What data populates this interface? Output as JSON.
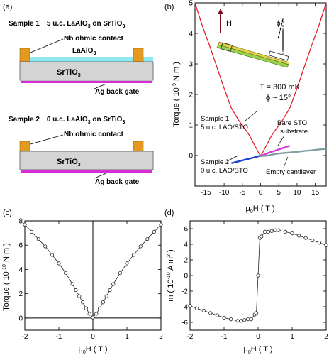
{
  "figure": {
    "panel_labels": [
      "(a)",
      "(b)",
      "(c)",
      "(d)"
    ],
    "panel_a": {
      "sample1": {
        "title_prefix": "Sample 1",
        "title_thickness": "5 u.c. LaAlO",
        "title_sub1": "3",
        "title_on": " on SrTiO",
        "title_sub2": "3",
        "contact_label": "Nb ohmic contact",
        "layer_label": "LaAlO",
        "layer_sub": "3",
        "substrate_label": "SrTiO",
        "substrate_sub": "3",
        "gate_label": "Ag back gate"
      },
      "sample2": {
        "title_prefix": "Sample 2",
        "title_thickness": "0 u.c. LaAlO",
        "title_sub1": "3",
        "title_on": " on SrTiO",
        "title_sub2": "3",
        "contact_label": "Nb ohmic contact",
        "substrate_label": "SrTiO",
        "substrate_sub": "3",
        "gate_label": "Ag back gate"
      },
      "colors": {
        "contact": "#e39a1f",
        "lao": "#8fe9ee",
        "sto": "#d4d4d4",
        "gate": "#d62bd6"
      }
    }
  },
  "chart_data": [
    {
      "panel": "(b)",
      "type": "line",
      "xlabel": "μ0H ( T )",
      "ylabel": "Torque  ( 10-9 N m )",
      "xlim": [
        -18,
        18
      ],
      "ylim": [
        -1,
        5
      ],
      "xticks": [
        -15,
        -10,
        -5,
        0,
        5,
        10,
        15
      ],
      "yticks": [
        0,
        1,
        2,
        3,
        4,
        5
      ],
      "annotations": {
        "temperature": "T = 300 mK",
        "angle": "ϕ ~ 15°",
        "field_arrow": "H",
        "phi_symbol": "ϕ",
        "s1_line1": "Sample 1",
        "s1_line2": "5 u.c. LAO/STO",
        "s2_line1": "Sample 2",
        "s2_line2": "0 u.c.  LAO/STO",
        "bare_line1": "Bare STO",
        "bare_line2": "substrate",
        "empty": "Empty cantilever"
      },
      "series": [
        {
          "color": "#e8202a",
          "x": [
            -18,
            -16,
            -14,
            -12,
            -10,
            -8,
            -6,
            -4,
            -3,
            -2,
            -1,
            -0.5,
            0,
            0.5,
            1,
            2,
            3,
            4,
            6,
            8,
            10,
            12,
            14,
            16,
            18
          ],
          "y": [
            5.0,
            4.25,
            3.6,
            2.9,
            2.2,
            1.55,
            1.15,
            0.82,
            0.65,
            0.42,
            0.2,
            0.08,
            0.0,
            0.08,
            0.2,
            0.42,
            0.65,
            0.82,
            1.15,
            1.55,
            2.2,
            2.9,
            3.6,
            4.25,
            5.0
          ]
        },
        {
          "color": "#1f3fd0",
          "x": [
            -8,
            -7,
            -6,
            -5,
            -4,
            -3,
            -2,
            -1,
            0
          ],
          "y": [
            -0.25,
            -0.22,
            -0.19,
            -0.16,
            -0.13,
            -0.1,
            -0.07,
            -0.04,
            0.0
          ]
        },
        {
          "color": "#d63cd6",
          "x": [
            0,
            1,
            2,
            3,
            4,
            5,
            6,
            7,
            8
          ],
          "y": [
            0.0,
            0.03,
            0.08,
            0.12,
            0.16,
            0.2,
            0.24,
            0.28,
            0.32
          ]
        },
        {
          "color": "#7f9fa4",
          "x": [
            0,
            2,
            4,
            6,
            8,
            10,
            12,
            14,
            16,
            18
          ],
          "y": [
            -0.02,
            0.0,
            0.05,
            0.08,
            0.1,
            0.12,
            0.15,
            0.17,
            0.2,
            0.22
          ]
        }
      ]
    },
    {
      "panel": "(c)",
      "type": "scatter",
      "xlabel": "μ0H ( T )",
      "ylabel": "Torque  ( 10-10 N m )",
      "xlim": [
        -2,
        2
      ],
      "ylim": [
        -1,
        8
      ],
      "xticks": [
        -2,
        -1,
        0,
        1,
        2
      ],
      "yticks": [
        0,
        2,
        4,
        6,
        8
      ],
      "x": [
        -2.0,
        -1.8,
        -1.6,
        -1.4,
        -1.2,
        -1.0,
        -0.8,
        -0.6,
        -0.5,
        -0.4,
        -0.3,
        -0.2,
        -0.1,
        0.0,
        0.1,
        0.2,
        0.3,
        0.4,
        0.5,
        0.6,
        0.8,
        1.0,
        1.2,
        1.4,
        1.6,
        1.8,
        2.0
      ],
      "y": [
        7.7,
        7.1,
        6.5,
        5.9,
        5.2,
        4.5,
        3.7,
        2.8,
        2.3,
        1.8,
        1.3,
        0.8,
        0.35,
        0.05,
        0.35,
        0.8,
        1.3,
        1.8,
        2.3,
        2.8,
        3.7,
        4.5,
        5.2,
        5.9,
        6.5,
        7.1,
        7.7
      ]
    },
    {
      "panel": "(d)",
      "type": "scatter",
      "xlabel": "μ0H ( T )",
      "ylabel": "m ( 10-10 A m2 )",
      "xlim": [
        -2,
        2
      ],
      "ylim": [
        -7,
        7
      ],
      "xticks": [
        -2,
        -1,
        0,
        1,
        2
      ],
      "yticks": [
        -6,
        -4,
        -2,
        0,
        2,
        4,
        6
      ],
      "x": [
        -2.0,
        -1.8,
        -1.6,
        -1.4,
        -1.2,
        -1.0,
        -0.8,
        -0.6,
        -0.5,
        -0.4,
        -0.3,
        -0.2,
        -0.1,
        -0.05,
        0.0,
        0.05,
        0.1,
        0.2,
        0.3,
        0.4,
        0.5,
        0.6,
        0.8,
        1.0,
        1.2,
        1.4,
        1.6,
        1.8,
        2.0
      ],
      "y": [
        -3.9,
        -4.2,
        -4.5,
        -4.8,
        -5.1,
        -5.4,
        -5.6,
        -5.8,
        -5.8,
        -5.7,
        -5.6,
        -5.6,
        -5.0,
        -4.8,
        0.0,
        4.8,
        5.0,
        5.6,
        5.6,
        5.7,
        5.8,
        5.8,
        5.6,
        5.4,
        5.1,
        4.8,
        4.5,
        4.2,
        3.9
      ]
    }
  ]
}
